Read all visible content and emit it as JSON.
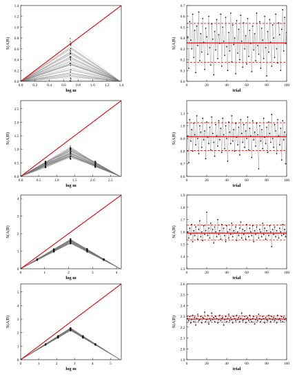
{
  "figure": {
    "line_color": "#e01010",
    "dashed_color": "#e01010",
    "trace_color": "#777777",
    "point_color": "#111111"
  },
  "chart_data": [
    {
      "id": "left-1",
      "type": "line",
      "xlabel": "log m",
      "ylabel": "S(A|B)",
      "xlim": [
        0,
        1.4
      ],
      "ylim": [
        0,
        1.4
      ],
      "xticks": [
        "0.0",
        "0.2",
        "0.4",
        "0.6",
        "0.8",
        "1.0",
        "1.2",
        "1.4"
      ],
      "yticks": [
        "0.0",
        "0.2",
        "0.4",
        "0.6",
        "0.8",
        "1.0",
        "1.2",
        "1.4"
      ],
      "diagonal": true,
      "peak_x": 0.693,
      "peak_range": [
        0.0,
        0.66
      ],
      "x_end": 1.386,
      "ridge_x": [
        0.693
      ],
      "ridge_spread": [
        0.66
      ]
    },
    {
      "id": "left-2",
      "type": "line",
      "xlabel": "log m",
      "ylabel": "S(A|B)",
      "xlim": [
        0,
        2.8
      ],
      "ylim": [
        0,
        2.8
      ],
      "xticks": [
        "0.0",
        "0.5",
        "1.0",
        "1.5",
        "2.0",
        "2.5"
      ],
      "yticks": [
        "0.0",
        "0.5",
        "1.0",
        "1.5",
        "2.0",
        "2.5"
      ],
      "diagonal": true,
      "peak_x": 1.386,
      "peak_range": [
        0.7,
        1.05
      ],
      "x_end": 2.773,
      "ridge_x": [
        0.693,
        1.386,
        2.079
      ],
      "ridge_spread": [
        0.2,
        0.35,
        0.2
      ]
    },
    {
      "id": "left-3",
      "type": "line",
      "xlabel": "log m",
      "ylabel": "S(A|B)",
      "xlim": [
        0,
        4.2
      ],
      "ylim": [
        0,
        4.2
      ],
      "xticks": [
        "0",
        "1",
        "2",
        "3",
        "4"
      ],
      "yticks": [
        "0",
        "1",
        "2",
        "3",
        "4"
      ],
      "diagonal": true,
      "peak_x": 2.079,
      "peak_range": [
        1.45,
        1.68
      ],
      "x_end": 4.159,
      "ridge_x": [
        0.693,
        1.386,
        2.079,
        2.773,
        3.466
      ],
      "ridge_spread": [
        0.05,
        0.12,
        0.2,
        0.14,
        0.06
      ]
    },
    {
      "id": "left-4",
      "type": "line",
      "xlabel": "log m",
      "ylabel": "S(A|B)",
      "xlim": [
        0,
        5.6
      ],
      "ylim": [
        0,
        5.6
      ],
      "xticks": [
        "0",
        "1",
        "2",
        "3",
        "4",
        "5"
      ],
      "yticks": [
        "0",
        "1",
        "2",
        "3",
        "4",
        "5"
      ],
      "diagonal": true,
      "peak_x": 2.773,
      "peak_range": [
        2.15,
        2.35
      ],
      "x_end": 5.545,
      "ridge_x": [
        1.386,
        2.079,
        2.773,
        3.466,
        4.159
      ],
      "ridge_spread": [
        0.05,
        0.08,
        0.1,
        0.08,
        0.05
      ]
    },
    {
      "id": "right-1",
      "type": "scatter",
      "xlabel": "trial",
      "ylabel": "S(A|B)",
      "xlim": [
        0,
        100
      ],
      "ylim": [
        0,
        0.7
      ],
      "xticks": [
        "0",
        "20",
        "40",
        "60",
        "80",
        "100"
      ],
      "yticks": [
        "0.0",
        "0.1",
        "0.2",
        "0.3",
        "0.4",
        "0.5",
        "0.6",
        "0.7"
      ],
      "mean": 0.355,
      "band": [
        0.175,
        0.535
      ],
      "values": [
        0.41,
        0.12,
        0.55,
        0.38,
        0.3,
        0.62,
        0.22,
        0.47,
        0.08,
        0.51,
        0.33,
        0.64,
        0.19,
        0.44,
        0.27,
        0.58,
        0.36,
        0.11,
        0.49,
        0.41,
        0.25,
        0.6,
        0.31,
        0.15,
        0.53,
        0.39,
        0.06,
        0.46,
        0.29,
        0.57,
        0.21,
        0.43,
        0.35,
        0.62,
        0.14,
        0.5,
        0.37,
        0.24,
        0.59,
        0.32,
        0.1,
        0.45,
        0.28,
        0.63,
        0.18,
        0.52,
        0.34,
        0.4,
        0.07,
        0.56,
        0.26,
        0.48,
        0.2,
        0.61,
        0.37,
        0.13,
        0.54,
        0.3,
        0.42,
        0.16,
        0.58,
        0.23,
        0.47,
        0.35,
        0.09,
        0.51,
        0.29,
        0.44,
        0.19,
        0.63,
        0.33,
        0.25,
        0.55,
        0.12,
        0.49,
        0.38,
        0.21,
        0.6,
        0.31,
        0.05,
        0.46,
        0.27,
        0.57,
        0.36,
        0.14,
        0.52,
        0.4,
        0.22,
        0.62,
        0.3,
        0.17,
        0.54,
        0.43,
        0.1,
        0.48,
        0.66,
        0.28,
        0.59,
        0.35,
        0.45
      ]
    },
    {
      "id": "right-2",
      "type": "scatter",
      "xlabel": "trial",
      "ylabel": "S(A|B)",
      "xlim": [
        0,
        100
      ],
      "ylim": [
        0.6,
        1.2
      ],
      "xticks": [
        "0",
        "20",
        "40",
        "60",
        "80",
        "100"
      ],
      "yticks": [
        "0.6",
        "0.7",
        "0.8",
        "0.9",
        "1.0",
        "1.1"
      ],
      "mean": 0.915,
      "band": [
        0.805,
        1.025
      ],
      "values": [
        0.92,
        0.71,
        1.05,
        0.88,
        0.97,
        0.8,
        1.02,
        0.93,
        0.85,
        1.08,
        0.9,
        0.78,
        1.0,
        0.95,
        0.83,
        1.06,
        0.89,
        0.96,
        0.74,
        1.03,
        0.91,
        0.86,
        0.99,
        0.81,
        1.07,
        0.94,
        0.87,
        0.76,
        1.01,
        0.92,
        0.84,
        1.04,
        0.89,
        0.98,
        0.79,
        1.06,
        0.93,
        0.82,
        1.0,
        0.9,
        0.72,
        1.03,
        0.95,
        0.86,
        1.08,
        0.88,
        0.97,
        0.8,
        1.02,
        0.91,
        0.85,
        0.99,
        0.77,
        1.05,
        0.94,
        0.87,
        1.01,
        0.83,
        0.96,
        0.9,
        1.07,
        0.81,
        0.98,
        0.92,
        0.75,
        1.04,
        0.89,
        0.95,
        0.84,
        1.02,
        0.93,
        0.66,
        1.0,
        0.88,
        0.97,
        0.82,
        1.06,
        0.91,
        0.86,
        0.99,
        0.79,
        1.03,
        0.94,
        0.87,
        1.09,
        0.9,
        0.83,
        1.01,
        0.96,
        0.78,
        1.05,
        0.92,
        0.85,
        0.98,
        0.73,
        1.04,
        0.89,
        0.95,
        0.7,
        0.93
      ]
    },
    {
      "id": "right-3",
      "type": "scatter",
      "xlabel": "trial",
      "ylabel": "S(A|B)",
      "xlim": [
        0,
        100
      ],
      "ylim": [
        1.3,
        1.9
      ],
      "xticks": [
        "0",
        "20",
        "40",
        "60",
        "80",
        "100"
      ],
      "yticks": [
        "1.3",
        "1.4",
        "1.5",
        "1.6",
        "1.7",
        "1.8",
        "1.9"
      ],
      "mean": 1.59,
      "band": [
        1.535,
        1.655
      ],
      "values": [
        1.6,
        1.55,
        1.63,
        1.58,
        1.66,
        1.52,
        1.61,
        1.57,
        1.64,
        1.59,
        1.54,
        1.62,
        1.69,
        1.56,
        1.6,
        1.53,
        1.65,
        1.58,
        1.61,
        1.76,
        1.57,
        1.63,
        1.55,
        1.67,
        1.59,
        1.62,
        1.51,
        1.64,
        1.6,
        1.56,
        1.7,
        1.58,
        1.61,
        1.54,
        1.66,
        1.59,
        1.63,
        1.57,
        1.52,
        1.65,
        1.6,
        1.55,
        1.62,
        1.58,
        1.67,
        1.56,
        1.61,
        1.59,
        1.64,
        1.53,
        1.6,
        1.57,
        1.63,
        1.68,
        1.55,
        1.62,
        1.58,
        1.61,
        1.54,
        1.66,
        1.59,
        1.56,
        1.63,
        1.6,
        1.57,
        1.65,
        1.52,
        1.61,
        1.58,
        1.64,
        1.59,
        1.55,
        1.62,
        1.6,
        1.56,
        1.67,
        1.58,
        1.63,
        1.54,
        1.61,
        1.59,
        1.57,
        1.65,
        1.6,
        1.48,
        1.62,
        1.58,
        1.64,
        1.56,
        1.61,
        1.59,
        1.55,
        1.63,
        1.6,
        1.57,
        1.66,
        1.58,
        1.62,
        1.56,
        1.6
      ]
    },
    {
      "id": "right-4",
      "type": "scatter",
      "xlabel": "trial",
      "ylabel": "S(A|B)",
      "xlim": [
        0,
        100
      ],
      "ylim": [
        1.9,
        2.6
      ],
      "xticks": [
        "0",
        "20",
        "40",
        "60",
        "80",
        "100"
      ],
      "yticks": [
        "1.9",
        "2.0",
        "2.1",
        "2.2",
        "2.3",
        "2.4",
        "2.5",
        "2.6"
      ],
      "mean": 2.275,
      "band": [
        2.245,
        2.305
      ],
      "values": [
        2.28,
        2.26,
        2.3,
        2.24,
        2.27,
        2.31,
        2.25,
        2.29,
        2.22,
        2.28,
        2.32,
        2.26,
        2.27,
        2.3,
        2.24,
        2.29,
        2.28,
        2.34,
        2.25,
        2.27,
        2.31,
        2.23,
        2.28,
        2.26,
        2.33,
        2.27,
        2.29,
        2.25,
        2.3,
        2.28,
        2.24,
        2.27,
        2.31,
        2.26,
        2.28,
        2.29,
        2.22,
        2.27,
        2.3,
        2.25,
        2.28,
        2.32,
        2.26,
        2.29,
        2.27,
        2.24,
        2.3,
        2.28,
        2.26,
        2.31,
        2.27,
        2.29,
        2.25,
        2.28,
        2.33,
        2.26,
        2.27,
        2.3,
        2.24,
        2.28,
        2.29,
        2.26,
        2.31,
        2.27,
        2.25,
        2.28,
        2.3,
        2.23,
        2.27,
        2.29,
        2.26,
        2.32,
        2.28,
        2.25,
        2.27,
        2.3,
        2.28,
        2.24,
        2.29,
        2.27,
        2.26,
        2.31,
        2.28,
        2.25,
        2.3,
        2.27,
        2.29,
        2.26,
        2.28,
        2.24,
        2.31,
        2.27,
        2.28,
        2.26,
        2.3,
        2.25,
        2.29,
        2.27,
        2.28,
        2.26
      ]
    }
  ]
}
